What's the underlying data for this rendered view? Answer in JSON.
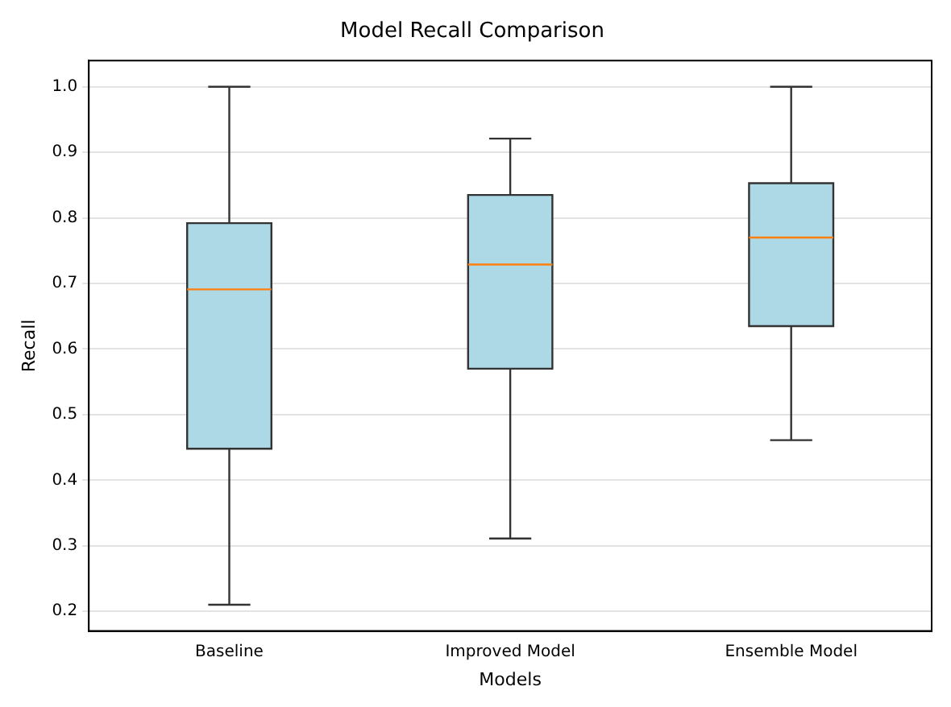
{
  "chart_data": {
    "type": "box",
    "title": "Model Recall Comparison",
    "xlabel": "Models",
    "ylabel": "Recall",
    "categories": [
      "Baseline",
      "Improved Model",
      "Ensemble Model"
    ],
    "boxes": [
      {
        "low": 0.21,
        "q1": 0.448,
        "median": 0.691,
        "q3": 0.792,
        "high": 1.0
      },
      {
        "low": 0.311,
        "q1": 0.57,
        "median": 0.729,
        "q3": 0.835,
        "high": 0.921
      },
      {
        "low": 0.461,
        "q1": 0.635,
        "median": 0.77,
        "q3": 0.853,
        "high": 1.0
      }
    ],
    "color": "#add8e6",
    "ylim": [
      0.17,
      1.04
    ],
    "yticks": [
      {
        "value": 0.2,
        "label": "0.2"
      },
      {
        "value": 0.3,
        "label": "0.3"
      },
      {
        "value": 0.4,
        "label": "0.4"
      },
      {
        "value": 0.5,
        "label": "0.5"
      },
      {
        "value": 0.6,
        "label": "0.6"
      },
      {
        "value": 0.7,
        "label": "0.7"
      },
      {
        "value": 0.8,
        "label": "0.8"
      },
      {
        "value": 0.9,
        "label": "0.9"
      },
      {
        "value": 1.0,
        "label": "1.0"
      }
    ],
    "grid": "y"
  }
}
